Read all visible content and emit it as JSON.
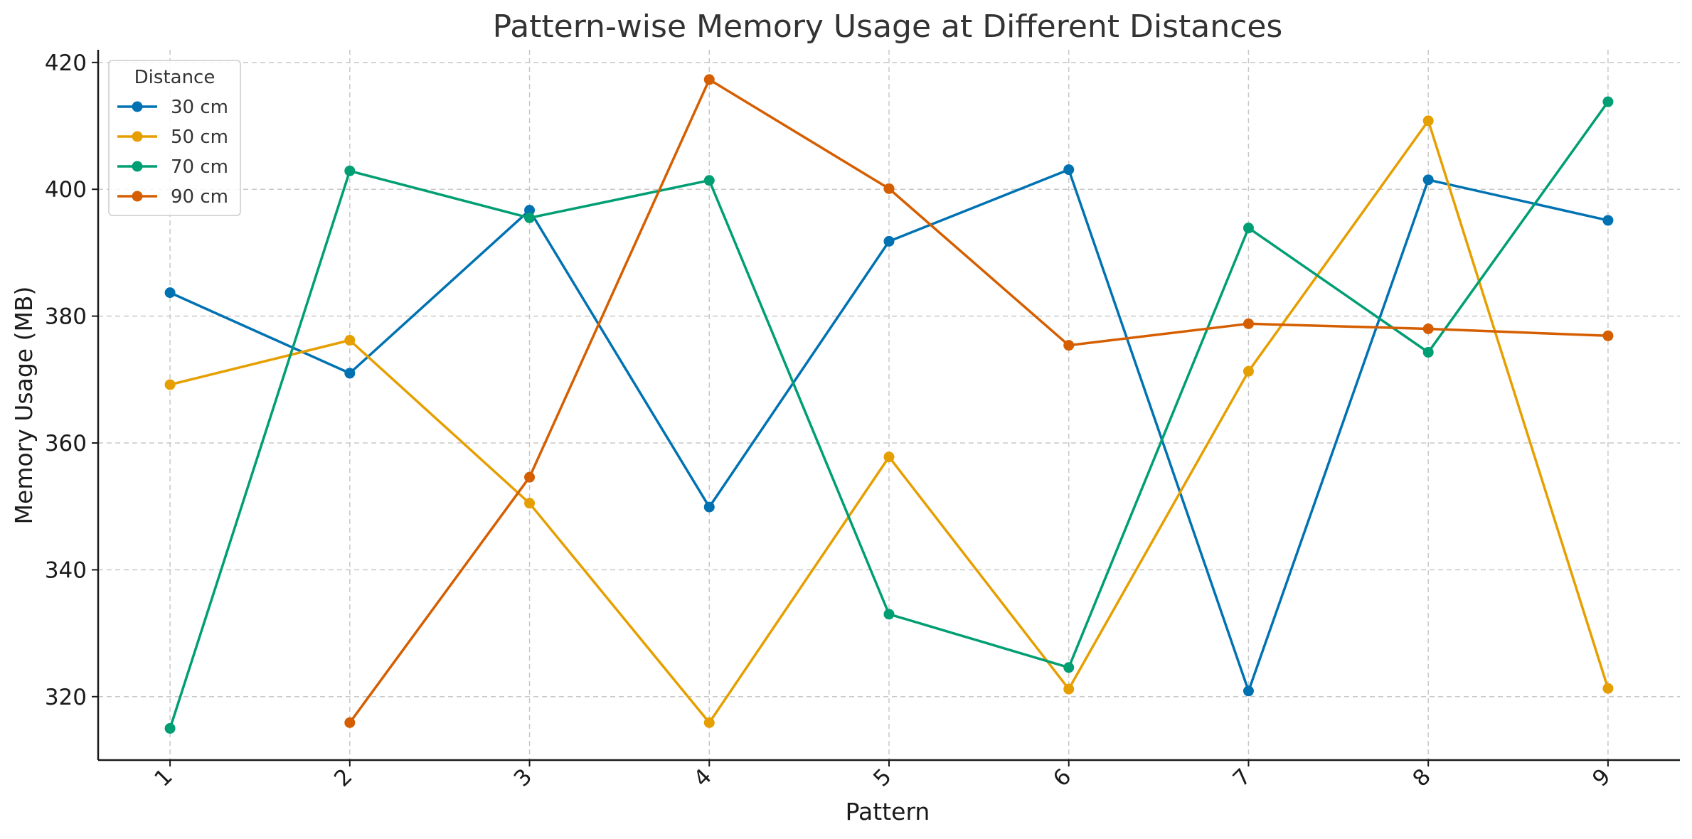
{
  "chart_data": {
    "type": "line",
    "title": "Pattern-wise Memory Usage at Different Distances",
    "xlabel": "Pattern",
    "ylabel": "Memory Usage (MB)",
    "x": [
      1,
      2,
      3,
      4,
      5,
      6,
      7,
      8,
      9
    ],
    "x_tick_labels": [
      "1",
      "2",
      "3",
      "4",
      "5",
      "6",
      "7",
      "8",
      "9"
    ],
    "y_ticks": [
      320,
      340,
      360,
      380,
      400,
      420
    ],
    "y_tick_labels": [
      "320",
      "340",
      "360",
      "380",
      "400",
      "420"
    ],
    "xlim": [
      0.6,
      9.4
    ],
    "ylim": [
      310,
      422
    ],
    "grid": true,
    "legend": {
      "title": "Distance",
      "placement": "top-left"
    },
    "series": [
      {
        "name": "30 cm",
        "color": "#0072B2",
        "values": [
          383.7,
          371.0,
          396.7,
          349.9,
          391.8,
          403.1,
          320.9,
          401.5,
          395.1
        ]
      },
      {
        "name": "50 cm",
        "color": "#E69F00",
        "values": [
          369.2,
          376.2,
          350.5,
          315.9,
          357.8,
          321.2,
          371.3,
          410.8,
          321.3
        ]
      },
      {
        "name": "70 cm",
        "color": "#009E73",
        "values": [
          315.0,
          402.9,
          395.5,
          401.4,
          333.0,
          324.6,
          393.9,
          374.3,
          413.8
        ]
      },
      {
        "name": "90 cm",
        "color": "#D55E00",
        "values": [
          null,
          315.9,
          354.6,
          417.3,
          400.1,
          375.4,
          378.8,
          378.0,
          376.9
        ]
      }
    ]
  }
}
